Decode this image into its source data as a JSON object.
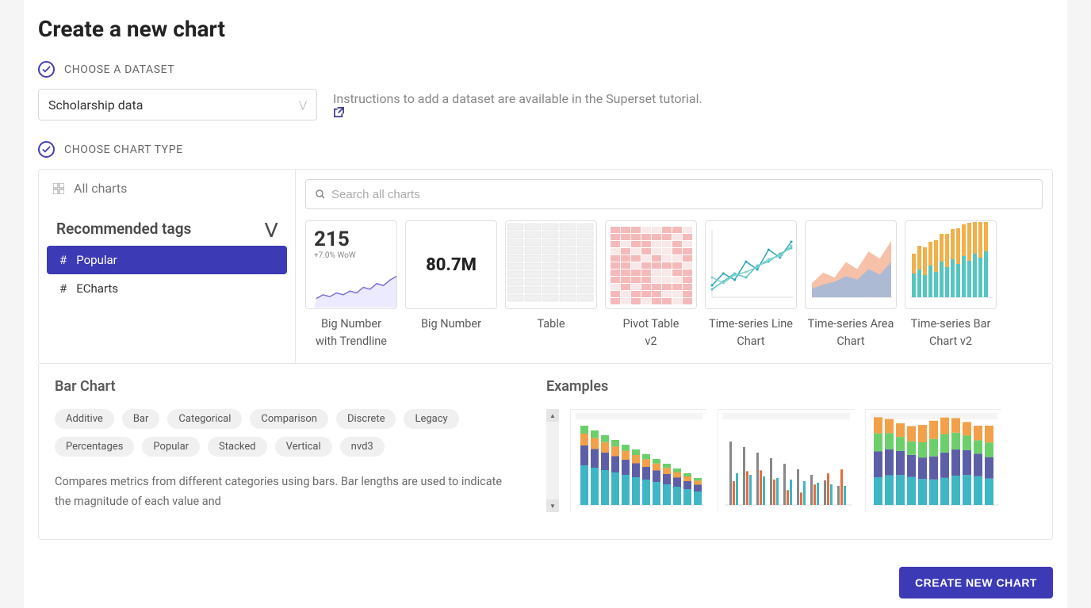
{
  "page": {
    "title": "Create a new chart",
    "step1_label": "CHOOSE A DATASET",
    "step2_label": "CHOOSE CHART TYPE",
    "dataset_value": "Scholarship data",
    "instructions_text": "Instructions to add a dataset are available in the Superset tutorial.",
    "create_button": "CREATE NEW CHART"
  },
  "sidebar": {
    "all_charts": "All charts",
    "section_title": "Recommended tags",
    "tags": [
      {
        "label": "Popular",
        "active": true
      },
      {
        "label": "ECharts",
        "active": false
      }
    ]
  },
  "search": {
    "placeholder": "Search all charts"
  },
  "thumbnails": [
    {
      "label": "Big Number with Trendline",
      "kind": "big_number_trend",
      "value": "215",
      "subtitle": "+7.0% WoW",
      "trend": [
        20,
        30,
        25,
        35,
        30,
        40,
        35,
        50,
        45,
        60,
        55,
        70,
        80,
        85
      ],
      "trend_color": "#7a6fdc",
      "fill_color": "#eceaff"
    },
    {
      "label": "Big Number",
      "kind": "big_number",
      "value": "80.7M"
    },
    {
      "label": "Table",
      "kind": "table"
    },
    {
      "label": "Pivot Table v2",
      "kind": "pivot"
    },
    {
      "label": "Time-series Line Chart",
      "kind": "line",
      "series": [
        [
          15,
          30,
          22,
          45,
          35,
          60,
          50,
          70
        ],
        [
          10,
          20,
          30,
          25,
          40,
          45,
          55,
          62
        ],
        [
          25,
          18,
          28,
          32,
          38,
          48,
          52,
          65
        ]
      ],
      "colors": [
        "#2aa6b5",
        "#58c3c6",
        "#7fd1cf"
      ]
    },
    {
      "label": "Time-series Area Chart",
      "kind": "area",
      "series": [
        [
          20,
          35,
          28,
          50,
          40,
          65,
          55,
          80
        ],
        [
          12,
          18,
          22,
          30,
          25,
          40,
          32,
          50
        ]
      ],
      "colors": [
        "#f6b59a",
        "#9fb8dc"
      ]
    },
    {
      "label": "Time-series Bar Chart v2",
      "kind": "stacked_bar",
      "bars": 14,
      "segments_colors": [
        "#55c6c0",
        "#f0b04a"
      ],
      "heights": [
        [
          30,
          25
        ],
        [
          35,
          30
        ],
        [
          28,
          35
        ],
        [
          40,
          30
        ],
        [
          32,
          40
        ],
        [
          45,
          35
        ],
        [
          38,
          42
        ],
        [
          48,
          38
        ],
        [
          42,
          45
        ],
        [
          52,
          40
        ],
        [
          46,
          48
        ],
        [
          55,
          42
        ],
        [
          50,
          50
        ],
        [
          58,
          45
        ]
      ]
    }
  ],
  "detail": {
    "title": "Bar Chart",
    "tags": [
      "Additive",
      "Bar",
      "Categorical",
      "Comparison",
      "Discrete",
      "Legacy",
      "Percentages",
      "Popular",
      "Stacked",
      "Vertical",
      "nvd3"
    ],
    "description": "Compares metrics from different categories using bars. Bar lengths are used to indicate the magnitude of each value and",
    "examples_title": "Examples",
    "examples": [
      {
        "type": "stacked_descending",
        "bars": 12,
        "colors": [
          "#3fb6c4",
          "#5d5ea8",
          "#f2a04a",
          "#6ccf6c"
        ],
        "background_color": "#ffffff"
      },
      {
        "type": "thin_grouped",
        "groups": 9,
        "colors": [
          "#888888",
          "#e07040",
          "#3fb6c4"
        ],
        "background_color": "#ffffff"
      },
      {
        "type": "stacked_uniform",
        "bars": 11,
        "colors": [
          "#3fb6c4",
          "#5d5ea8",
          "#6ccf6c",
          "#f2a04a"
        ],
        "background_color": "#ffffff"
      }
    ]
  },
  "colors": {
    "primary": "#3d3ab5",
    "border": "#e6e6e6",
    "text_muted": "#777777"
  }
}
